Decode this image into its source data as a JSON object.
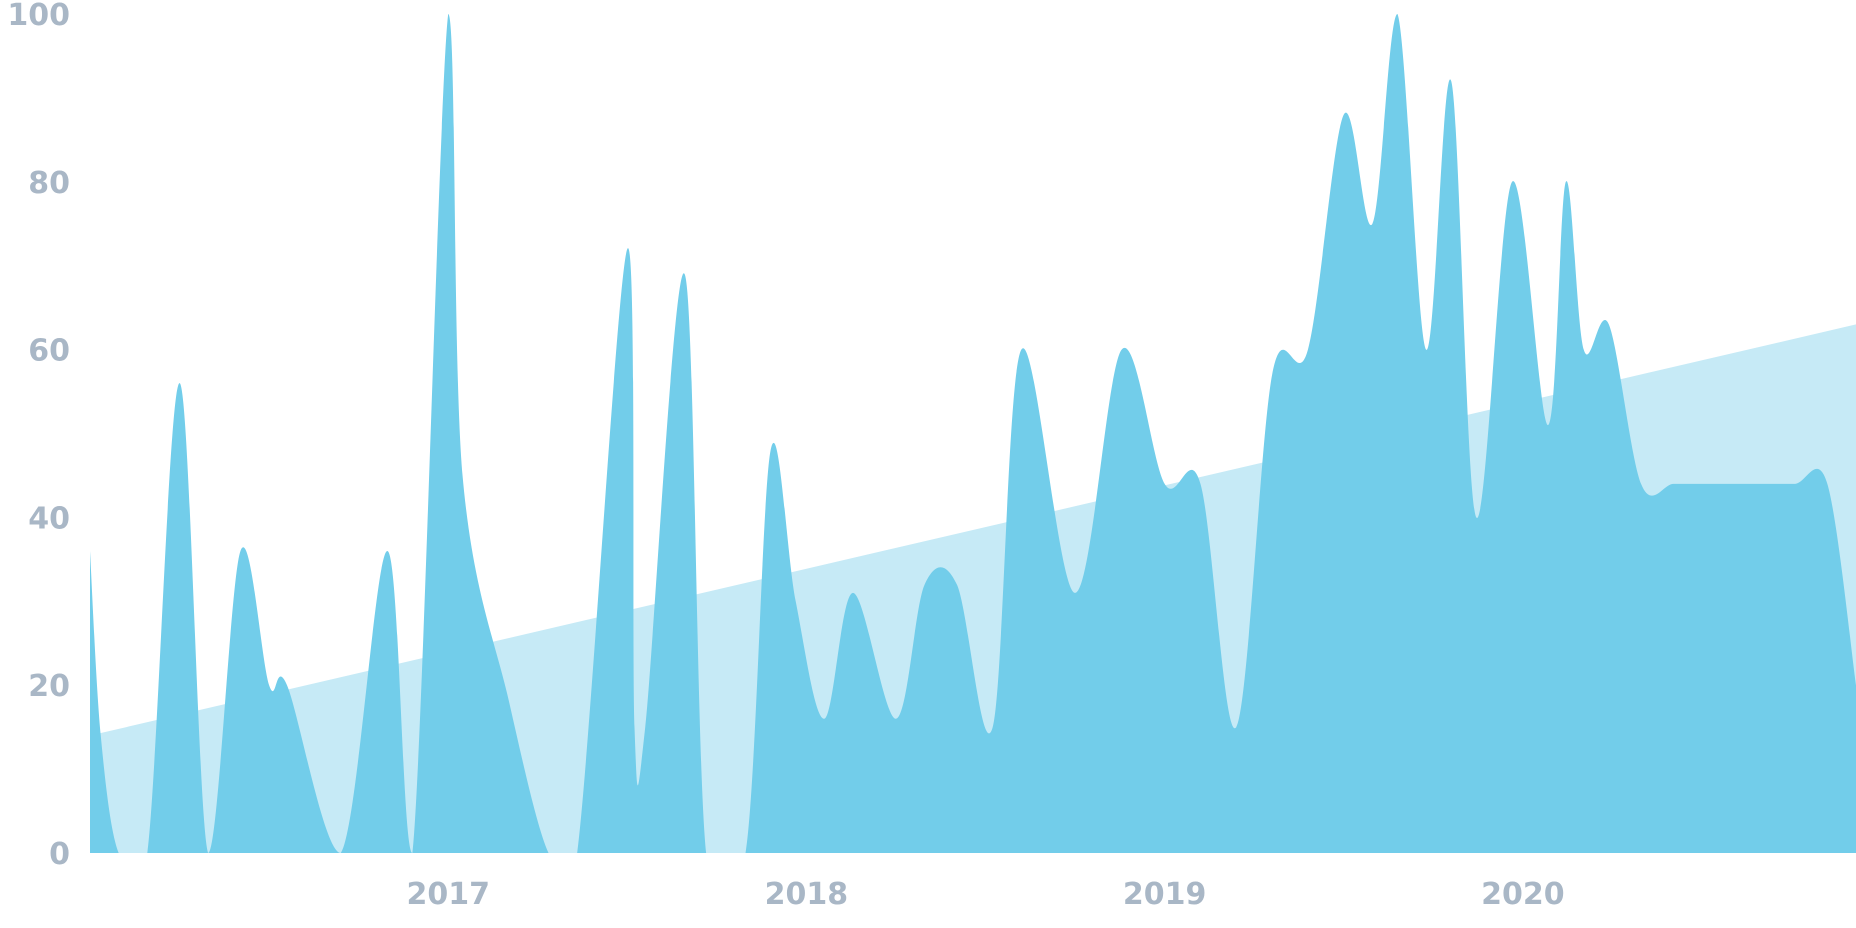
{
  "chart_data": {
    "type": "area",
    "x_ticks": [
      "2017",
      "2018",
      "2019",
      "2020"
    ],
    "y_ticks": [
      "0",
      "20",
      "40",
      "60",
      "80",
      "100"
    ],
    "ylim": [
      0,
      100
    ],
    "xlim": [
      2016.0,
      2020.93
    ],
    "grid": false,
    "legend": "none",
    "colors": {
      "series": "#72cdea",
      "trend": "#c6eaf6",
      "tick_text": "#a9b7c6"
    },
    "series": [
      {
        "x": [
          2016.0,
          2016.03,
          2016.08,
          2016.16,
          2016.25,
          2016.33,
          2016.42,
          2016.5,
          2016.55,
          2016.7,
          2016.83,
          2016.9,
          2017.0,
          2017.04,
          2017.17,
          2017.28,
          2017.36,
          2017.5,
          2017.52,
          2017.55,
          2017.66,
          2017.72,
          2017.83,
          2017.9,
          2017.97,
          2018.05,
          2018.13,
          2018.25,
          2018.33,
          2018.42,
          2018.52,
          2018.6,
          2018.75,
          2018.88,
          2019.0,
          2019.1,
          2019.2,
          2019.3,
          2019.4,
          2019.5,
          2019.58,
          2019.65,
          2019.73,
          2019.8,
          2019.87,
          2019.97,
          2020.07,
          2020.12,
          2020.17,
          2020.24,
          2020.33,
          2020.42,
          2020.5,
          2020.59,
          2020.67,
          2020.76,
          2020.85,
          2020.93
        ],
        "y": [
          36,
          14,
          0,
          0,
          56,
          0,
          36,
          20,
          20,
          0,
          36,
          0,
          100,
          45,
          18,
          0,
          0,
          72,
          15,
          15,
          69,
          0,
          0,
          48,
          30,
          16,
          31,
          16,
          32,
          32,
          15,
          60,
          31,
          60,
          44,
          44,
          15,
          57,
          60,
          88,
          75,
          100,
          60,
          92,
          40,
          80,
          51,
          80,
          60,
          63,
          44,
          44,
          44,
          44,
          44,
          44,
          44,
          20
        ]
      }
    ],
    "trend": {
      "x": [
        2016.0,
        2020.93
      ],
      "y": [
        14,
        63
      ]
    }
  }
}
